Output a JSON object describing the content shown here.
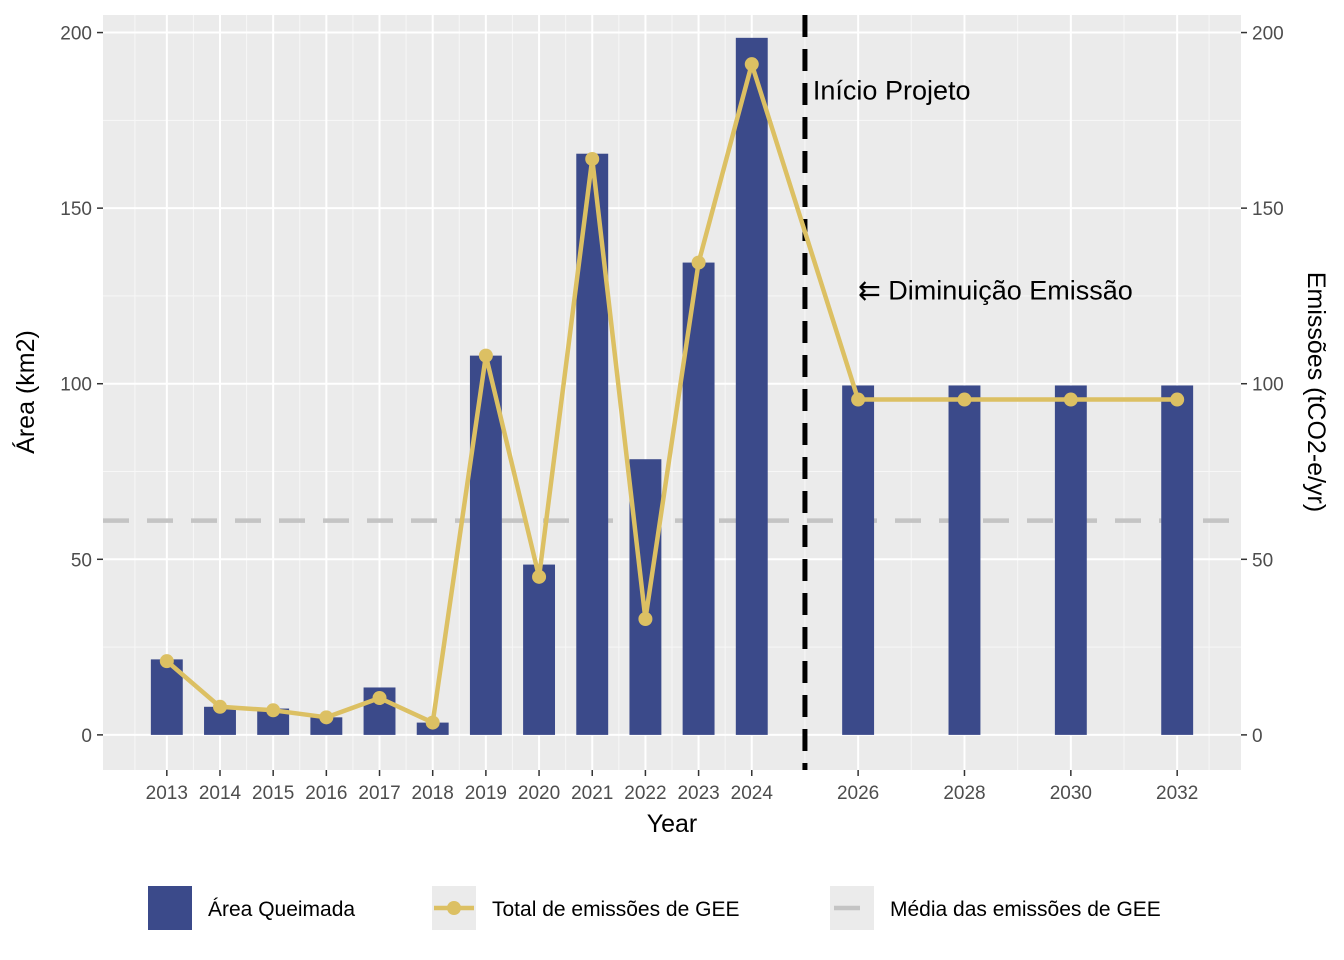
{
  "chart_data": {
    "type": "bar",
    "x_label": "Year",
    "y_left_label": "Área (km2)",
    "y_right_label": "Emissões (tCO2-e/yr)",
    "y_range": [
      -10,
      205
    ],
    "y_ticks": [
      0,
      50,
      100,
      150,
      200
    ],
    "x_range": [
      2011.8,
      2033.2
    ],
    "x_ticks": [
      "2013",
      "2014",
      "2015",
      "2016",
      "2017",
      "2018",
      "2019",
      "2020",
      "2021",
      "2022",
      "2023",
      "2024",
      "2026",
      "2028",
      "2030",
      "2032"
    ],
    "grid": true,
    "legend_position": "bottom",
    "series": [
      {
        "name": "Área Queimada",
        "kind": "bar",
        "color": "#3b4a8a",
        "x": [
          2013,
          2014,
          2015,
          2016,
          2017,
          2018,
          2019,
          2020,
          2021,
          2022,
          2023,
          2024,
          2026,
          2028,
          2030,
          2032
        ],
        "values": [
          21.5,
          8,
          7.5,
          5,
          13.5,
          3.5,
          108,
          48.5,
          165.5,
          78.5,
          134.5,
          198.5,
          99.5,
          99.5,
          99.5,
          99.5
        ]
      },
      {
        "name": "Total de emissões de GEE",
        "kind": "line",
        "color": "#dcc063",
        "x": [
          2013,
          2014,
          2015,
          2016,
          2017,
          2018,
          2019,
          2020,
          2021,
          2022,
          2023,
          2024,
          2026,
          2028,
          2030,
          2032
        ],
        "values": [
          21,
          8,
          7,
          5,
          10.5,
          3.5,
          108,
          45,
          164,
          33,
          134.5,
          191,
          95.5,
          95.5,
          95.5,
          95.5
        ]
      },
      {
        "name": "Média das emissões de GEE",
        "kind": "hline",
        "color": "#c4c4c4",
        "value": 61
      }
    ],
    "annotations": [
      {
        "text": "Início Projeto",
        "x": 2025.15,
        "y": 181
      },
      {
        "text": "⇇ Diminuição Emissão",
        "x": 2026.0,
        "y": 124
      }
    ],
    "vline": {
      "x": 2025,
      "color": "#000000"
    }
  }
}
